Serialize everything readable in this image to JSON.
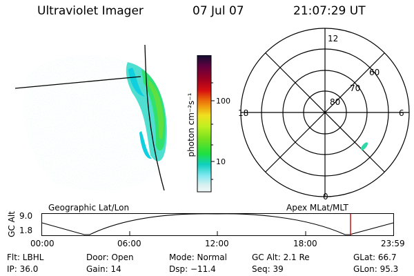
{
  "header": {
    "instrument": "Ultraviolet Imager",
    "date": "07 Jul 07",
    "time": "21:07:29 UT"
  },
  "colorbar": {
    "unit_label": "photon cm⁻²s⁻¹",
    "ticks": [
      "100",
      "10"
    ],
    "colors": [
      "#101030",
      "#600040",
      "#a00020",
      "#d81010",
      "#e8600a",
      "#f0a010",
      "#f0e020",
      "#c0f020",
      "#70e020",
      "#20e040",
      "#10d0c0",
      "#80e8f0",
      "#d8f0f0",
      "#f0f8f8"
    ]
  },
  "polar_plot": {
    "mlt_labels": {
      "top": "12",
      "right": "6",
      "bottom": "0",
      "left": "18"
    },
    "lat_labels": [
      "60",
      "70",
      "80"
    ]
  },
  "timeline": {
    "left_title": "Geographic Lat/Lon",
    "right_title": "Apex MLat/MLT",
    "axis_label": "GC Alt",
    "y_ticks": [
      "9.0",
      "1.8"
    ],
    "x_ticks": [
      "00:00",
      "06:00",
      "12:00",
      "18:00",
      "23:59"
    ],
    "current_marker_color": "#cc0000"
  },
  "info": {
    "flt": "Flt: LBHL",
    "ip": "IP: 36.0",
    "door": "Door: Open",
    "gain": "Gain: 14",
    "mode": "Mode: Normal",
    "dsp": "Dsp:  −11.4",
    "gcalt": "GC Alt: 2.1 Re",
    "seq": "Seq: 39",
    "glat": "GLat:  66.7",
    "glon": "GLon:  95.3"
  }
}
